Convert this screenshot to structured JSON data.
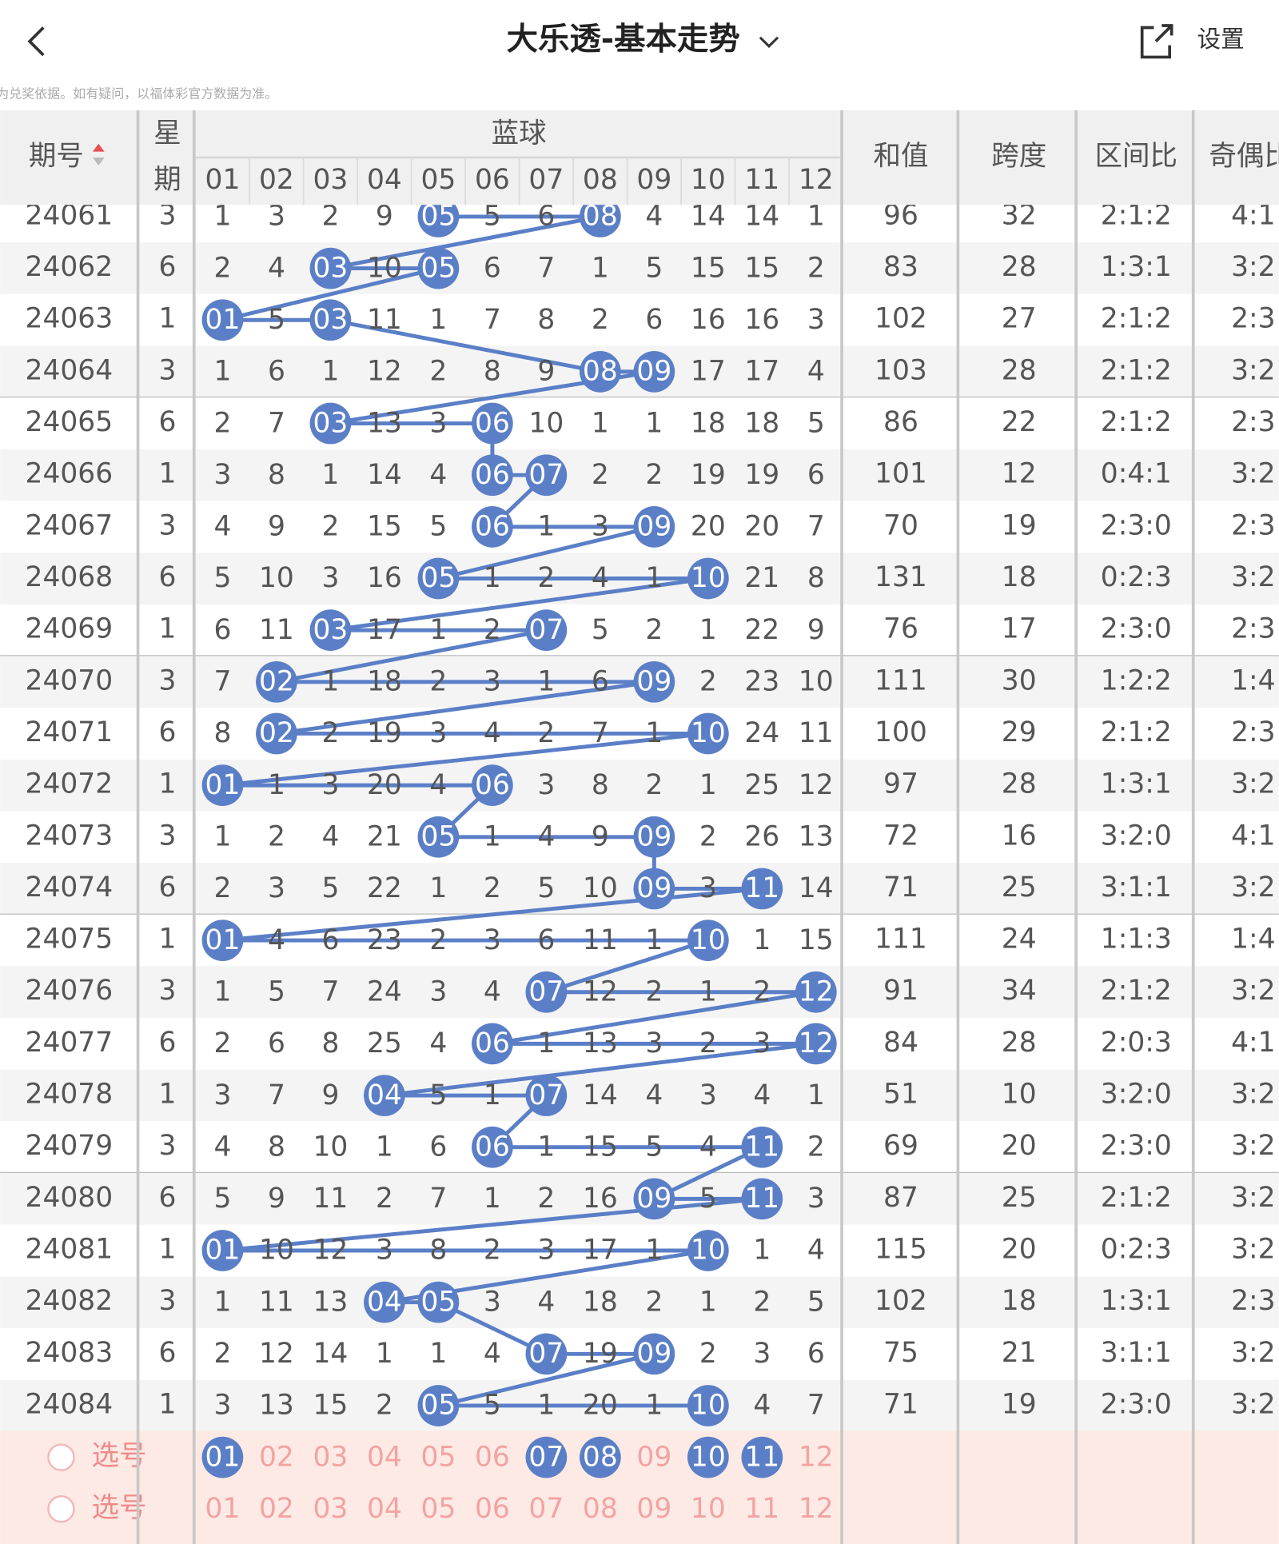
{
  "header": {
    "title": "大乐透-基本走势",
    "settings": "设置",
    "note": "注：开奖结果来源于网络，仅供参考不作为兑奖依据。如有疑问，以福体彩官方数据为准。"
  },
  "table": {
    "columns": {
      "period": "期号",
      "weekday": [
        "星",
        "期"
      ],
      "blue": "蓝球",
      "blue_numbers": [
        "01",
        "02",
        "03",
        "04",
        "05",
        "06",
        "07",
        "08",
        "09",
        "10",
        "11",
        "12"
      ],
      "sum": "和值",
      "span": "跨度",
      "zone_ratio": "区间比",
      "odd_even": "奇偶比"
    },
    "rows": [
      {
        "period": "24061",
        "weekday": "3",
        "cells": [
          "1",
          "3",
          "2",
          "9",
          {
            "text": "05",
            "ball": true
          },
          "5",
          "6",
          {
            "text": "08",
            "ball": true
          },
          "4",
          "14",
          "14",
          "1"
        ],
        "sum": "96",
        "span": "32",
        "zone_ratio": "2:1:2",
        "odd_even": "4:1"
      },
      {
        "period": "24062",
        "weekday": "6",
        "cells": [
          "2",
          "4",
          {
            "text": "03",
            "ball": true
          },
          "10",
          {
            "text": "05",
            "ball": true
          },
          "6",
          "7",
          "1",
          "5",
          "15",
          "15",
          "2"
        ],
        "sum": "83",
        "span": "28",
        "zone_ratio": "1:3:1",
        "odd_even": "3:2"
      },
      {
        "period": "24063",
        "weekday": "1",
        "cells": [
          {
            "text": "01",
            "ball": true
          },
          "5",
          {
            "text": "03",
            "ball": true
          },
          "11",
          "1",
          "7",
          "8",
          "2",
          "6",
          "16",
          "16",
          "3"
        ],
        "sum": "102",
        "span": "27",
        "zone_ratio": "2:1:2",
        "odd_even": "2:3"
      },
      {
        "period": "24064",
        "weekday": "3",
        "cells": [
          "1",
          "6",
          "1",
          "12",
          "2",
          "8",
          "9",
          {
            "text": "08",
            "ball": true
          },
          {
            "text": "09",
            "ball": true
          },
          "17",
          "17",
          "4"
        ],
        "sum": "103",
        "span": "28",
        "zone_ratio": "2:1:2",
        "odd_even": "3:2"
      },
      {
        "period": "24065",
        "weekday": "6",
        "cells": [
          "2",
          "7",
          {
            "text": "03",
            "ball": true
          },
          "13",
          "3",
          {
            "text": "06",
            "ball": true
          },
          "10",
          "1",
          "1",
          "18",
          "18",
          "5"
        ],
        "sum": "86",
        "span": "22",
        "zone_ratio": "2:1:2",
        "odd_even": "2:3"
      },
      {
        "period": "24066",
        "weekday": "1",
        "cells": [
          "3",
          "8",
          "1",
          "14",
          "4",
          {
            "text": "06",
            "ball": true
          },
          {
            "text": "07",
            "ball": true
          },
          "2",
          "2",
          "19",
          "19",
          "6"
        ],
        "sum": "101",
        "span": "12",
        "zone_ratio": "0:4:1",
        "odd_even": "3:2"
      },
      {
        "period": "24067",
        "weekday": "3",
        "cells": [
          "4",
          "9",
          "2",
          "15",
          "5",
          {
            "text": "06",
            "ball": true
          },
          "1",
          "3",
          {
            "text": "09",
            "ball": true
          },
          "20",
          "20",
          "7"
        ],
        "sum": "70",
        "span": "19",
        "zone_ratio": "2:3:0",
        "odd_even": "2:3"
      },
      {
        "period": "24068",
        "weekday": "6",
        "cells": [
          "5",
          "10",
          "3",
          "16",
          {
            "text": "05",
            "ball": true
          },
          "1",
          "2",
          "4",
          "1",
          {
            "text": "10",
            "ball": true
          },
          "21",
          "8"
        ],
        "sum": "131",
        "span": "18",
        "zone_ratio": "0:2:3",
        "odd_even": "3:2"
      },
      {
        "period": "24069",
        "weekday": "1",
        "cells": [
          "6",
          "11",
          {
            "text": "03",
            "ball": true
          },
          "17",
          "1",
          "2",
          {
            "text": "07",
            "ball": true
          },
          "5",
          "2",
          "1",
          "22",
          "9"
        ],
        "sum": "76",
        "span": "17",
        "zone_ratio": "2:3:0",
        "odd_even": "2:3"
      },
      {
        "period": "24070",
        "weekday": "3",
        "cells": [
          "7",
          {
            "text": "02",
            "ball": true
          },
          "1",
          "18",
          "2",
          "3",
          "1",
          "6",
          {
            "text": "09",
            "ball": true
          },
          "2",
          "23",
          "10"
        ],
        "sum": "111",
        "span": "30",
        "zone_ratio": "1:2:2",
        "odd_even": "1:4"
      },
      {
        "period": "24071",
        "weekday": "6",
        "cells": [
          "8",
          {
            "text": "02",
            "ball": true
          },
          "2",
          "19",
          "3",
          "4",
          "2",
          "7",
          "1",
          {
            "text": "10",
            "ball": true
          },
          "24",
          "11"
        ],
        "sum": "100",
        "span": "29",
        "zone_ratio": "2:1:2",
        "odd_even": "2:3"
      },
      {
        "period": "24072",
        "weekday": "1",
        "cells": [
          {
            "text": "01",
            "ball": true
          },
          "1",
          "3",
          "20",
          "4",
          {
            "text": "06",
            "ball": true
          },
          "3",
          "8",
          "2",
          "1",
          "25",
          "12"
        ],
        "sum": "97",
        "span": "28",
        "zone_ratio": "1:3:1",
        "odd_even": "3:2"
      },
      {
        "period": "24073",
        "weekday": "3",
        "cells": [
          "1",
          "2",
          "4",
          "21",
          {
            "text": "05",
            "ball": true
          },
          "1",
          "4",
          "9",
          {
            "text": "09",
            "ball": true
          },
          "2",
          "26",
          "13"
        ],
        "sum": "72",
        "span": "16",
        "zone_ratio": "3:2:0",
        "odd_even": "4:1"
      },
      {
        "period": "24074",
        "weekday": "6",
        "cells": [
          "2",
          "3",
          "5",
          "22",
          "1",
          "2",
          "5",
          "10",
          {
            "text": "09",
            "ball": true
          },
          "3",
          {
            "text": "11",
            "ball": true
          },
          "14"
        ],
        "sum": "71",
        "span": "25",
        "zone_ratio": "3:1:1",
        "odd_even": "3:2"
      },
      {
        "period": "24075",
        "weekday": "1",
        "cells": [
          {
            "text": "01",
            "ball": true
          },
          "4",
          "6",
          "23",
          "2",
          "3",
          "6",
          "11",
          "1",
          {
            "text": "10",
            "ball": true
          },
          "1",
          "15"
        ],
        "sum": "111",
        "span": "24",
        "zone_ratio": "1:1:3",
        "odd_even": "1:4"
      },
      {
        "period": "24076",
        "weekday": "3",
        "cells": [
          "1",
          "5",
          "7",
          "24",
          "3",
          "4",
          {
            "text": "07",
            "ball": true
          },
          "12",
          "2",
          "1",
          "2",
          {
            "text": "12",
            "ball": true
          }
        ],
        "sum": "91",
        "span": "34",
        "zone_ratio": "2:1:2",
        "odd_even": "3:2"
      },
      {
        "period": "24077",
        "weekday": "6",
        "cells": [
          "2",
          "6",
          "8",
          "25",
          "4",
          {
            "text": "06",
            "ball": true
          },
          "1",
          "13",
          "3",
          "2",
          "3",
          {
            "text": "12",
            "ball": true
          }
        ],
        "sum": "84",
        "span": "28",
        "zone_ratio": "2:0:3",
        "odd_even": "4:1"
      },
      {
        "period": "24078",
        "weekday": "1",
        "cells": [
          "3",
          "7",
          "9",
          {
            "text": "04",
            "ball": true
          },
          "5",
          "1",
          {
            "text": "07",
            "ball": true
          },
          "14",
          "4",
          "3",
          "4",
          "1"
        ],
        "sum": "51",
        "span": "10",
        "zone_ratio": "3:2:0",
        "odd_even": "3:2"
      },
      {
        "period": "24079",
        "weekday": "3",
        "cells": [
          "4",
          "8",
          "10",
          "1",
          "6",
          {
            "text": "06",
            "ball": true
          },
          "1",
          "15",
          "5",
          "4",
          {
            "text": "11",
            "ball": true
          },
          "2"
        ],
        "sum": "69",
        "span": "20",
        "zone_ratio": "2:3:0",
        "odd_even": "3:2"
      },
      {
        "period": "24080",
        "weekday": "6",
        "cells": [
          "5",
          "9",
          "11",
          "2",
          "7",
          "1",
          "2",
          "16",
          {
            "text": "09",
            "ball": true
          },
          "5",
          {
            "text": "11",
            "ball": true
          },
          "3"
        ],
        "sum": "87",
        "span": "25",
        "zone_ratio": "2:1:2",
        "odd_even": "3:2"
      },
      {
        "period": "24081",
        "weekday": "1",
        "cells": [
          {
            "text": "01",
            "ball": true
          },
          "10",
          "12",
          "3",
          "8",
          "2",
          "3",
          "17",
          "1",
          {
            "text": "10",
            "ball": true
          },
          "1",
          "4"
        ],
        "sum": "115",
        "span": "20",
        "zone_ratio": "0:2:3",
        "odd_even": "3:2"
      },
      {
        "period": "24082",
        "weekday": "3",
        "cells": [
          "1",
          "11",
          "13",
          {
            "text": "04",
            "ball": true
          },
          {
            "text": "05",
            "ball": true
          },
          "3",
          "4",
          "18",
          "2",
          "1",
          "2",
          "5"
        ],
        "sum": "102",
        "span": "18",
        "zone_ratio": "1:3:1",
        "odd_even": "2:3"
      },
      {
        "period": "24083",
        "weekday": "6",
        "cells": [
          "2",
          "12",
          "14",
          "1",
          "1",
          "4",
          {
            "text": "07",
            "ball": true
          },
          "19",
          {
            "text": "09",
            "ball": true
          },
          "2",
          "3",
          "6"
        ],
        "sum": "75",
        "span": "21",
        "zone_ratio": "3:1:1",
        "odd_even": "3:2"
      },
      {
        "period": "24084",
        "weekday": "1",
        "cells": [
          "3",
          "13",
          "15",
          "2",
          {
            "text": "05",
            "ball": true
          },
          "5",
          "1",
          "20",
          "1",
          {
            "text": "10",
            "ball": true
          },
          "4",
          "7"
        ],
        "sum": "71",
        "span": "19",
        "zone_ratio": "2:3:0",
        "odd_even": "3:2"
      }
    ],
    "pick_rows": [
      {
        "label": "选号",
        "numbers": [
          {
            "text": "01",
            "ball": true
          },
          "02",
          "03",
          "04",
          "05",
          "06",
          {
            "text": "07",
            "ball": true
          },
          {
            "text": "08",
            "ball": true
          },
          "09",
          {
            "text": "10",
            "ball": true
          },
          {
            "text": "11",
            "ball": true
          },
          "12"
        ]
      },
      {
        "label": "选号",
        "numbers": [
          "01",
          "02",
          "03",
          "04",
          "05",
          "06",
          "07",
          "08",
          "09",
          "10",
          "11",
          "12"
        ]
      }
    ]
  }
}
